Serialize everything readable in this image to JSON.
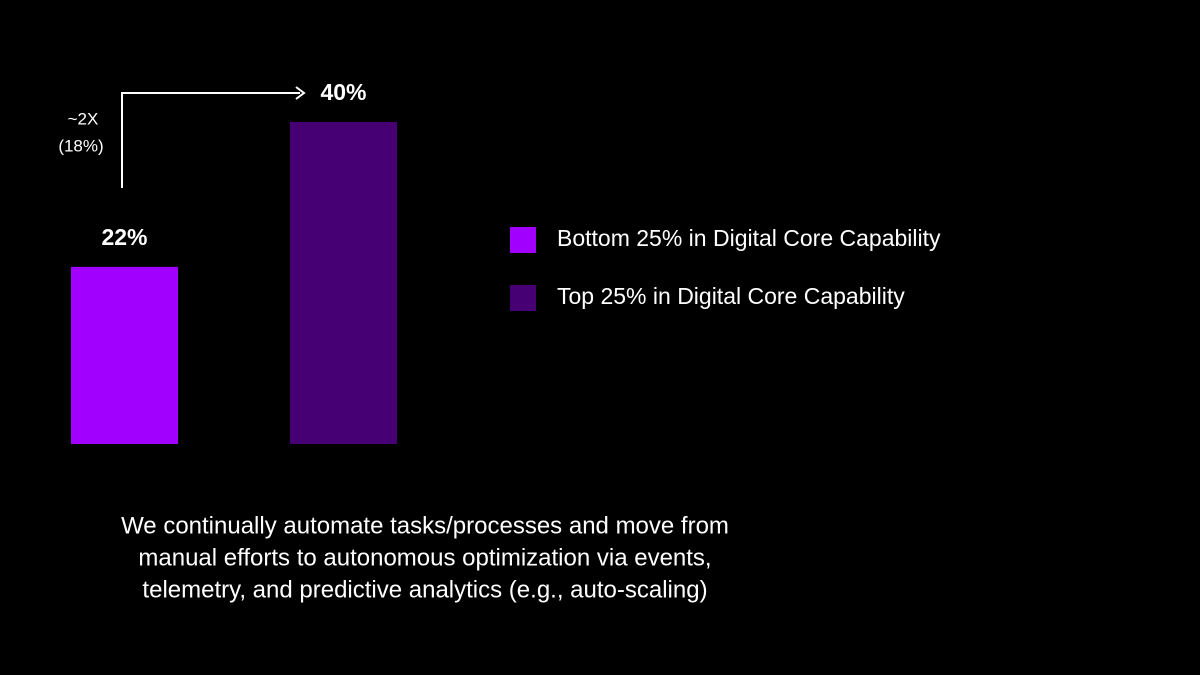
{
  "chart_data": {
    "type": "bar",
    "categories": [
      null
    ],
    "series": [
      {
        "name": "Bottom 25% in Digital Core Capability",
        "color": "#a100ff",
        "values": [
          22
        ],
        "value_labels": [
          "22%"
        ]
      },
      {
        "name": "Top 25% in Digital Core Capability",
        "color": "#460073",
        "values": [
          40
        ],
        "value_labels": [
          "40%"
        ]
      }
    ],
    "ylim": [
      0,
      40
    ],
    "annotations": [
      "~2X",
      "(18%)"
    ],
    "caption": [
      "We continually automate tasks/processes and move from",
      "manual efforts to autonomous optimization via events,",
      "telemetry, and predictive analytics (e.g., auto-scaling)"
    ]
  }
}
